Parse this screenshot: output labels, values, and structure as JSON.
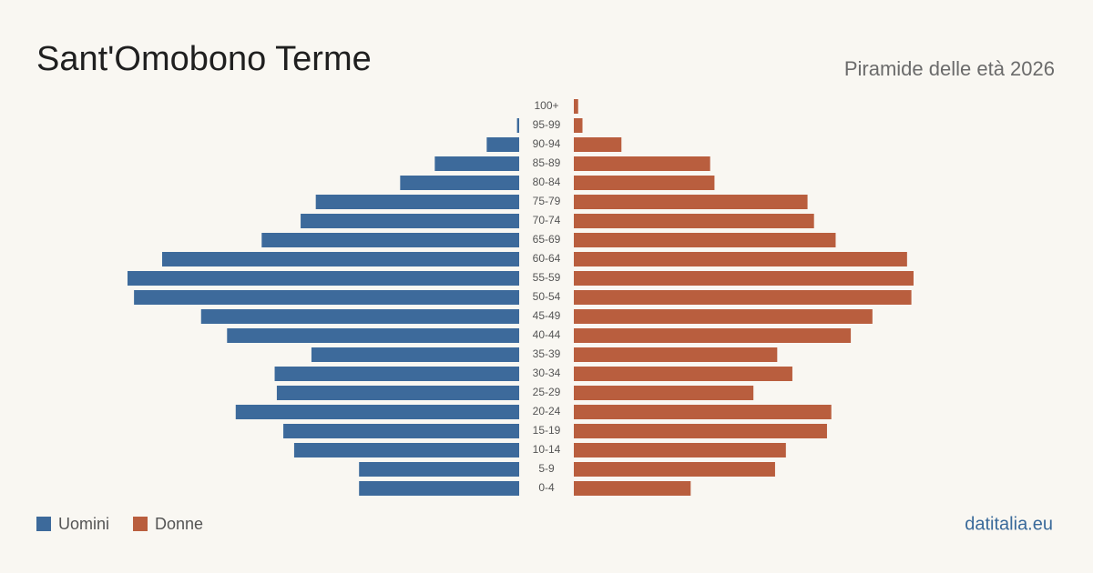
{
  "chart_data": {
    "type": "pyramid",
    "title": "Sant'Omobono Terme",
    "subtitle": "Piramide delle età 2026",
    "source": "datitalia.eu",
    "categories": [
      "100+",
      "95-99",
      "90-94",
      "85-89",
      "80-84",
      "75-79",
      "70-74",
      "65-69",
      "60-64",
      "55-59",
      "50-54",
      "45-49",
      "40-44",
      "35-39",
      "30-34",
      "25-29",
      "20-24",
      "15-19",
      "10-14",
      "5-9",
      "0-4"
    ],
    "series": [
      {
        "name": "Uomini",
        "color": "#3d6a9b",
        "values": [
          0,
          1,
          15,
          39,
          55,
          94,
          101,
          119,
          165,
          181,
          178,
          147,
          135,
          96,
          113,
          112,
          131,
          109,
          104,
          74,
          74
        ]
      },
      {
        "name": "Donne",
        "color": "#b95e3e",
        "values": [
          2,
          4,
          22,
          63,
          65,
          108,
          111,
          121,
          154,
          157,
          156,
          138,
          128,
          94,
          101,
          83,
          119,
          117,
          98,
          93,
          54
        ]
      }
    ]
  }
}
